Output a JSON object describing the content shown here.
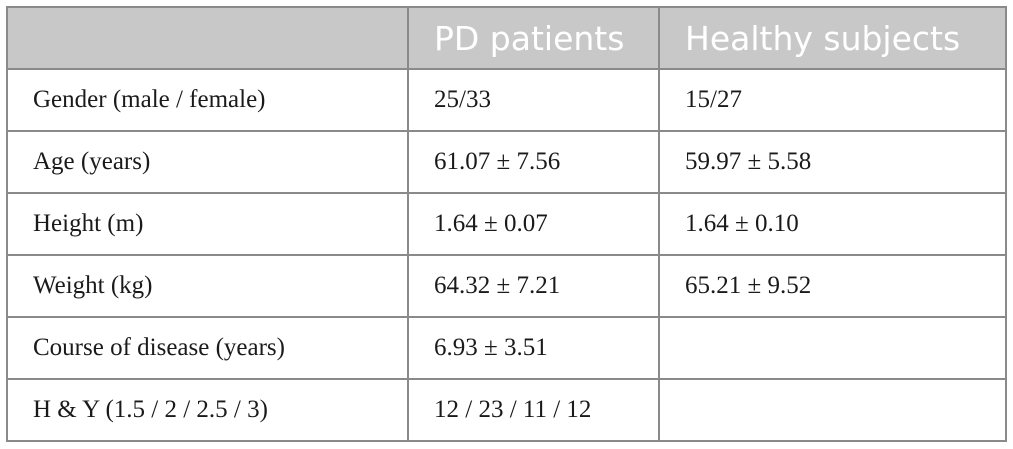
{
  "table": {
    "headers": [
      "",
      "PD patients",
      "Healthy subjects"
    ],
    "rows": [
      [
        "Gender (male / female)",
        "25/33",
        "15/27"
      ],
      [
        "Age (years)",
        "61.07 ± 7.56",
        "59.97 ± 5.58"
      ],
      [
        "Height (m)",
        "1.64 ± 0.07",
        "1.64 ± 0.10"
      ],
      [
        "Weight (kg)",
        "64.32 ± 7.21",
        "65.21 ± 9.52"
      ],
      [
        "Course of disease (years)",
        "6.93 ± 3.51",
        ""
      ],
      [
        "H & Y (1.5 / 2 / 2.5 / 3)",
        "12 / 23 / 11 / 12",
        ""
      ]
    ]
  },
  "colors": {
    "header_background": "#c8c8c8",
    "header_text": "#ffffff",
    "border": "#8a8a8a",
    "body_text": "#1a1a1a"
  }
}
